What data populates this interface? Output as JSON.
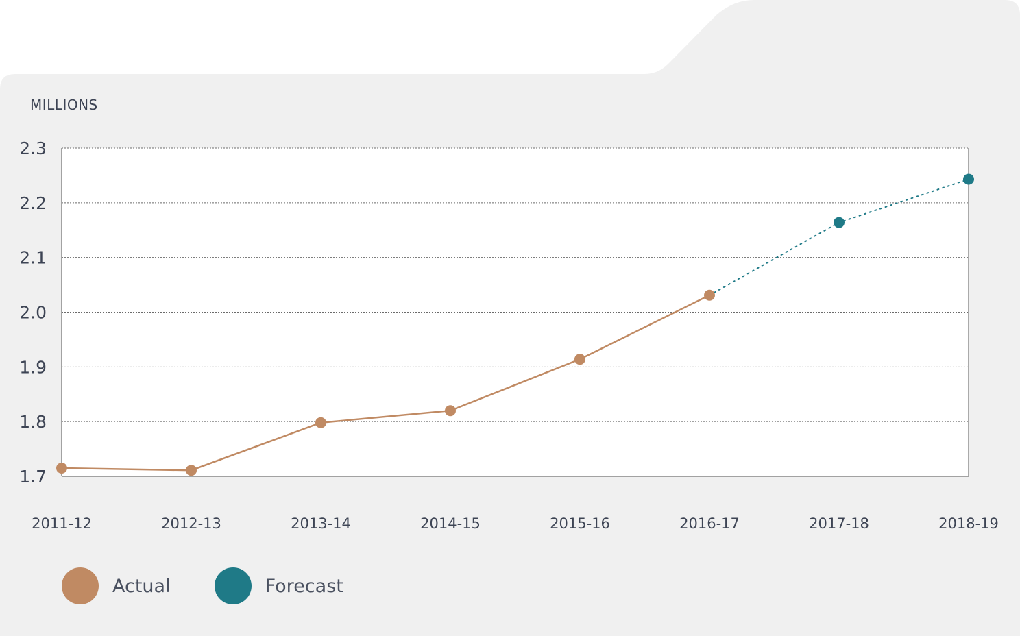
{
  "unit_label": "MILLIONS",
  "colors": {
    "actual": "#c08a63",
    "forecast": "#1f7a87",
    "panel": "#f0f0f0",
    "plot": "#ffffff",
    "grid": "#6b6b6b"
  },
  "legend": [
    {
      "label": "Actual",
      "color": "#c08a63"
    },
    {
      "label": "Forecast",
      "color": "#1f7a87"
    }
  ],
  "chart_data": {
    "type": "line",
    "categories": [
      "2011-12",
      "2012-13",
      "2013-14",
      "2014-15",
      "2015-16",
      "2016-17",
      "2017-18",
      "2018-19"
    ],
    "series": [
      {
        "name": "Actual",
        "line_style": "solid",
        "x": [
          "2011-12",
          "2012-13",
          "2013-14",
          "2014-15",
          "2015-16",
          "2016-17"
        ],
        "values": [
          1.715,
          1.711,
          1.798,
          1.82,
          1.914,
          2.031
        ]
      },
      {
        "name": "Forecast",
        "line_style": "dotted",
        "x": [
          "2016-17",
          "2017-18",
          "2018-19"
        ],
        "values": [
          2.031,
          2.164,
          2.243
        ],
        "markers": [
          "2017-18",
          "2018-19"
        ]
      }
    ],
    "ylabel": "MILLIONS",
    "ylim": [
      1.7,
      2.3
    ],
    "yticks": [
      "1.7",
      "1.8",
      "1.9",
      "2.0",
      "2.1",
      "2.2",
      "2.3"
    ],
    "grid": true,
    "legend_position": "bottom-left"
  }
}
